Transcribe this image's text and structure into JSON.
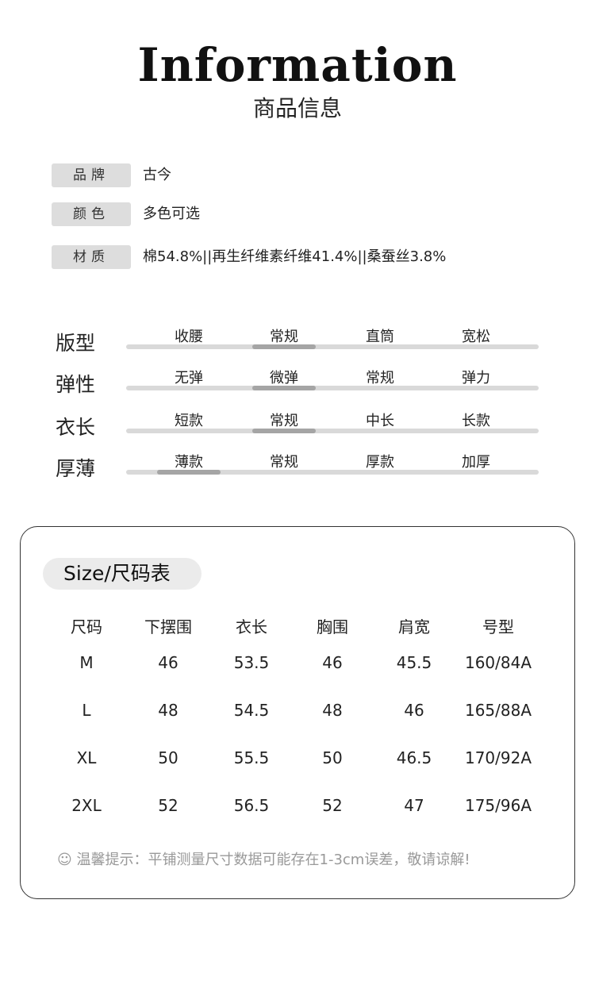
{
  "header": {
    "title_en": "Information",
    "title_cn": "商品信息"
  },
  "info": [
    {
      "label": "品牌",
      "value": "古今"
    },
    {
      "label": "颜色",
      "value": "多色可选"
    },
    {
      "label": "材质",
      "value": "棉54.8%||再生纤维素纤维41.4%||桑蚕丝3.8%"
    }
  ],
  "attributes": [
    {
      "name": "版型",
      "options": [
        "收腰",
        "常规",
        "直筒",
        "宽松"
      ],
      "selected_index": 1
    },
    {
      "name": "弹性",
      "options": [
        "无弹",
        "微弹",
        "常规",
        "弹力"
      ],
      "selected_index": 1
    },
    {
      "name": "衣长",
      "options": [
        "短款",
        "常规",
        "中长",
        "长款"
      ],
      "selected_index": 1
    },
    {
      "name": "厚薄",
      "options": [
        "薄款",
        "常规",
        "厚款",
        "加厚"
      ],
      "selected_index": 0
    }
  ],
  "size_table": {
    "title": "Size/尺码表",
    "headers": [
      "尺码",
      "下摆围",
      "衣长",
      "胸围",
      "肩宽",
      "号型"
    ],
    "rows": [
      [
        "M",
        "46",
        "53.5",
        "46",
        "45.5",
        "160/84A"
      ],
      [
        "L",
        "48",
        "54.5",
        "48",
        "46",
        "165/88A"
      ],
      [
        "XL",
        "50",
        "55.5",
        "50",
        "46.5",
        "170/92A"
      ],
      [
        "2XL",
        "52",
        "56.5",
        "52",
        "47",
        "175/96A"
      ]
    ],
    "note_icon": "smiley-icon",
    "note": "温馨提示：平铺测量尺寸数据可能存在1-3cm误差，敬请谅解!"
  }
}
